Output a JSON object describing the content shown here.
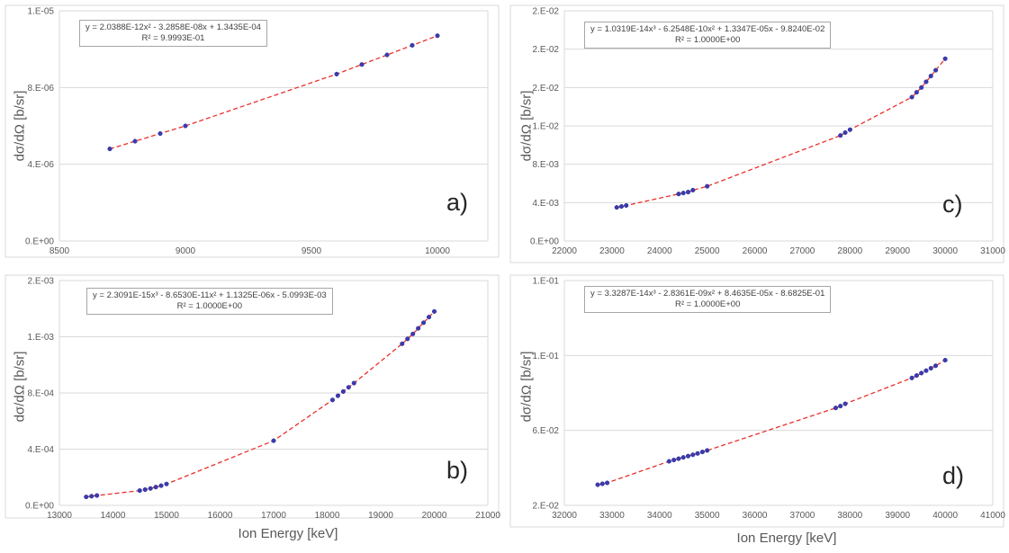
{
  "chart_data": [
    {
      "id": "a",
      "type": "scatter",
      "panel_label": "a)",
      "ylabel": "dσ/dΩ [b/sr]",
      "xlabel": "",
      "xlim": [
        8500,
        10200
      ],
      "ylim": [
        0,
        1.2e-05
      ],
      "xticks": [
        8500,
        9000,
        9500,
        10000
      ],
      "yticks": [
        0,
        4e-06,
        8e-06,
        1.2e-05
      ],
      "ytick_labels": [
        "0.E+00",
        "4.E-06",
        "8.E-06",
        "1.E-05"
      ],
      "grid": "horizontal",
      "trendline": {
        "equation": "y = 2.0388E-12x² - 3.2858E-08x + 1.3435E-04",
        "r2": "R² = 9.9993E-01"
      },
      "series": [
        {
          "x": [
            8700,
            8800,
            8900,
            9000,
            9600,
            9700,
            9800,
            9900,
            10000
          ],
          "y": [
            4.8e-06,
            5.2e-06,
            5.6e-06,
            6e-06,
            8.7e-06,
            9.2e-06,
            9.7e-06,
            1.02e-05,
            1.07e-05
          ]
        }
      ]
    },
    {
      "id": "b",
      "type": "scatter",
      "panel_label": "b)",
      "ylabel": "dσ/dΩ [b/sr]",
      "xlabel": "Ion Energy [keV]",
      "xlim": [
        13000,
        21000
      ],
      "ylim": [
        0,
        0.0016
      ],
      "xticks": [
        13000,
        14000,
        15000,
        16000,
        17000,
        18000,
        19000,
        20000,
        21000
      ],
      "yticks": [
        0,
        0.0004,
        0.0008,
        0.0012,
        0.0016
      ],
      "ytick_labels": [
        "0.E+00",
        "4.E-04",
        "8.E-04",
        "1.E-03",
        "2.E-03"
      ],
      "grid": "horizontal",
      "trendline": {
        "equation": "y = 2.3091E-15x³ - 8.6530E-11x² + 1.1325E-06x - 5.0993E-03",
        "r2": "R² = 1.0000E+00"
      },
      "series": [
        {
          "x": [
            13500,
            13600,
            13700,
            14500,
            14600,
            14700,
            14800,
            14900,
            15000,
            17000,
            18100,
            18200,
            18300,
            18400,
            18500,
            19400,
            19500,
            19600,
            19700,
            19800,
            19900,
            20000
          ],
          "y": [
            6e-05,
            6.5e-05,
            7e-05,
            0.000105,
            0.000112,
            0.00012,
            0.00013,
            0.00014,
            0.000152,
            0.00046,
            0.00075,
            0.00078,
            0.00081,
            0.00084,
            0.00087,
            0.00115,
            0.001185,
            0.00122,
            0.00126,
            0.0013,
            0.00134,
            0.00138
          ]
        }
      ]
    },
    {
      "id": "c",
      "type": "scatter",
      "panel_label": "c)",
      "ylabel": "dσ/dΩ [b/sr]",
      "xlabel": "",
      "xlim": [
        22000,
        31000
      ],
      "ylim": [
        0,
        0.024
      ],
      "xticks": [
        22000,
        23000,
        24000,
        25000,
        26000,
        27000,
        28000,
        29000,
        30000,
        31000
      ],
      "yticks": [
        0,
        0.004,
        0.008,
        0.012,
        0.016,
        0.02,
        0.024
      ],
      "ytick_labels": [
        "0.E+00",
        "4.E-03",
        "8.E-03",
        "1.E-02",
        "2.E-02",
        "2.E-02",
        "2.E-02"
      ],
      "grid": "horizontal",
      "trendline": {
        "equation": "y = 1.0319E-14x³ - 6.2548E-10x² + 1.3347E-05x - 9.8240E-02",
        "r2": "R² = 1.0000E+00"
      },
      "series": [
        {
          "x": [
            23100,
            23200,
            23300,
            24400,
            24500,
            24600,
            24700,
            25000,
            27800,
            27900,
            28000,
            29300,
            29400,
            29500,
            29600,
            29700,
            29800,
            30000
          ],
          "y": [
            0.0035,
            0.0036,
            0.0037,
            0.0049,
            0.005,
            0.0051,
            0.0053,
            0.0057,
            0.011,
            0.0113,
            0.0116,
            0.015,
            0.0155,
            0.016,
            0.0166,
            0.0172,
            0.0178,
            0.019
          ]
        }
      ]
    },
    {
      "id": "d",
      "type": "scatter",
      "panel_label": "d)",
      "ylabel": "dσ/dΩ [b/sr]",
      "xlabel": "Ion Energy [keV]",
      "xlim": [
        32000,
        41000
      ],
      "ylim": [
        0.02,
        0.14
      ],
      "xticks": [
        32000,
        33000,
        34000,
        35000,
        36000,
        37000,
        38000,
        39000,
        40000,
        41000
      ],
      "yticks": [
        0.02,
        0.06,
        0.1,
        0.14
      ],
      "ytick_labels": [
        "2.E-02",
        "6.E-02",
        "1.E-01",
        "1.E-01"
      ],
      "grid": "horizontal",
      "trendline": {
        "equation": "y = 3.3287E-14x³ - 2.8361E-09x² + 8.4635E-05x - 8.6825E-01",
        "r2": "R² = 1.0000E+00"
      },
      "series": [
        {
          "x": [
            32700,
            32800,
            32900,
            34200,
            34300,
            34400,
            34500,
            34600,
            34700,
            34800,
            34900,
            35000,
            37700,
            37800,
            37900,
            39300,
            39400,
            39500,
            39600,
            39700,
            39800,
            40000
          ],
          "y": [
            0.031,
            0.0315,
            0.032,
            0.0435,
            0.0442,
            0.0449,
            0.0456,
            0.0463,
            0.047,
            0.0477,
            0.0485,
            0.0493,
            0.072,
            0.073,
            0.0742,
            0.088,
            0.0893,
            0.0906,
            0.0919,
            0.0932,
            0.0945,
            0.0975
          ]
        }
      ]
    }
  ]
}
